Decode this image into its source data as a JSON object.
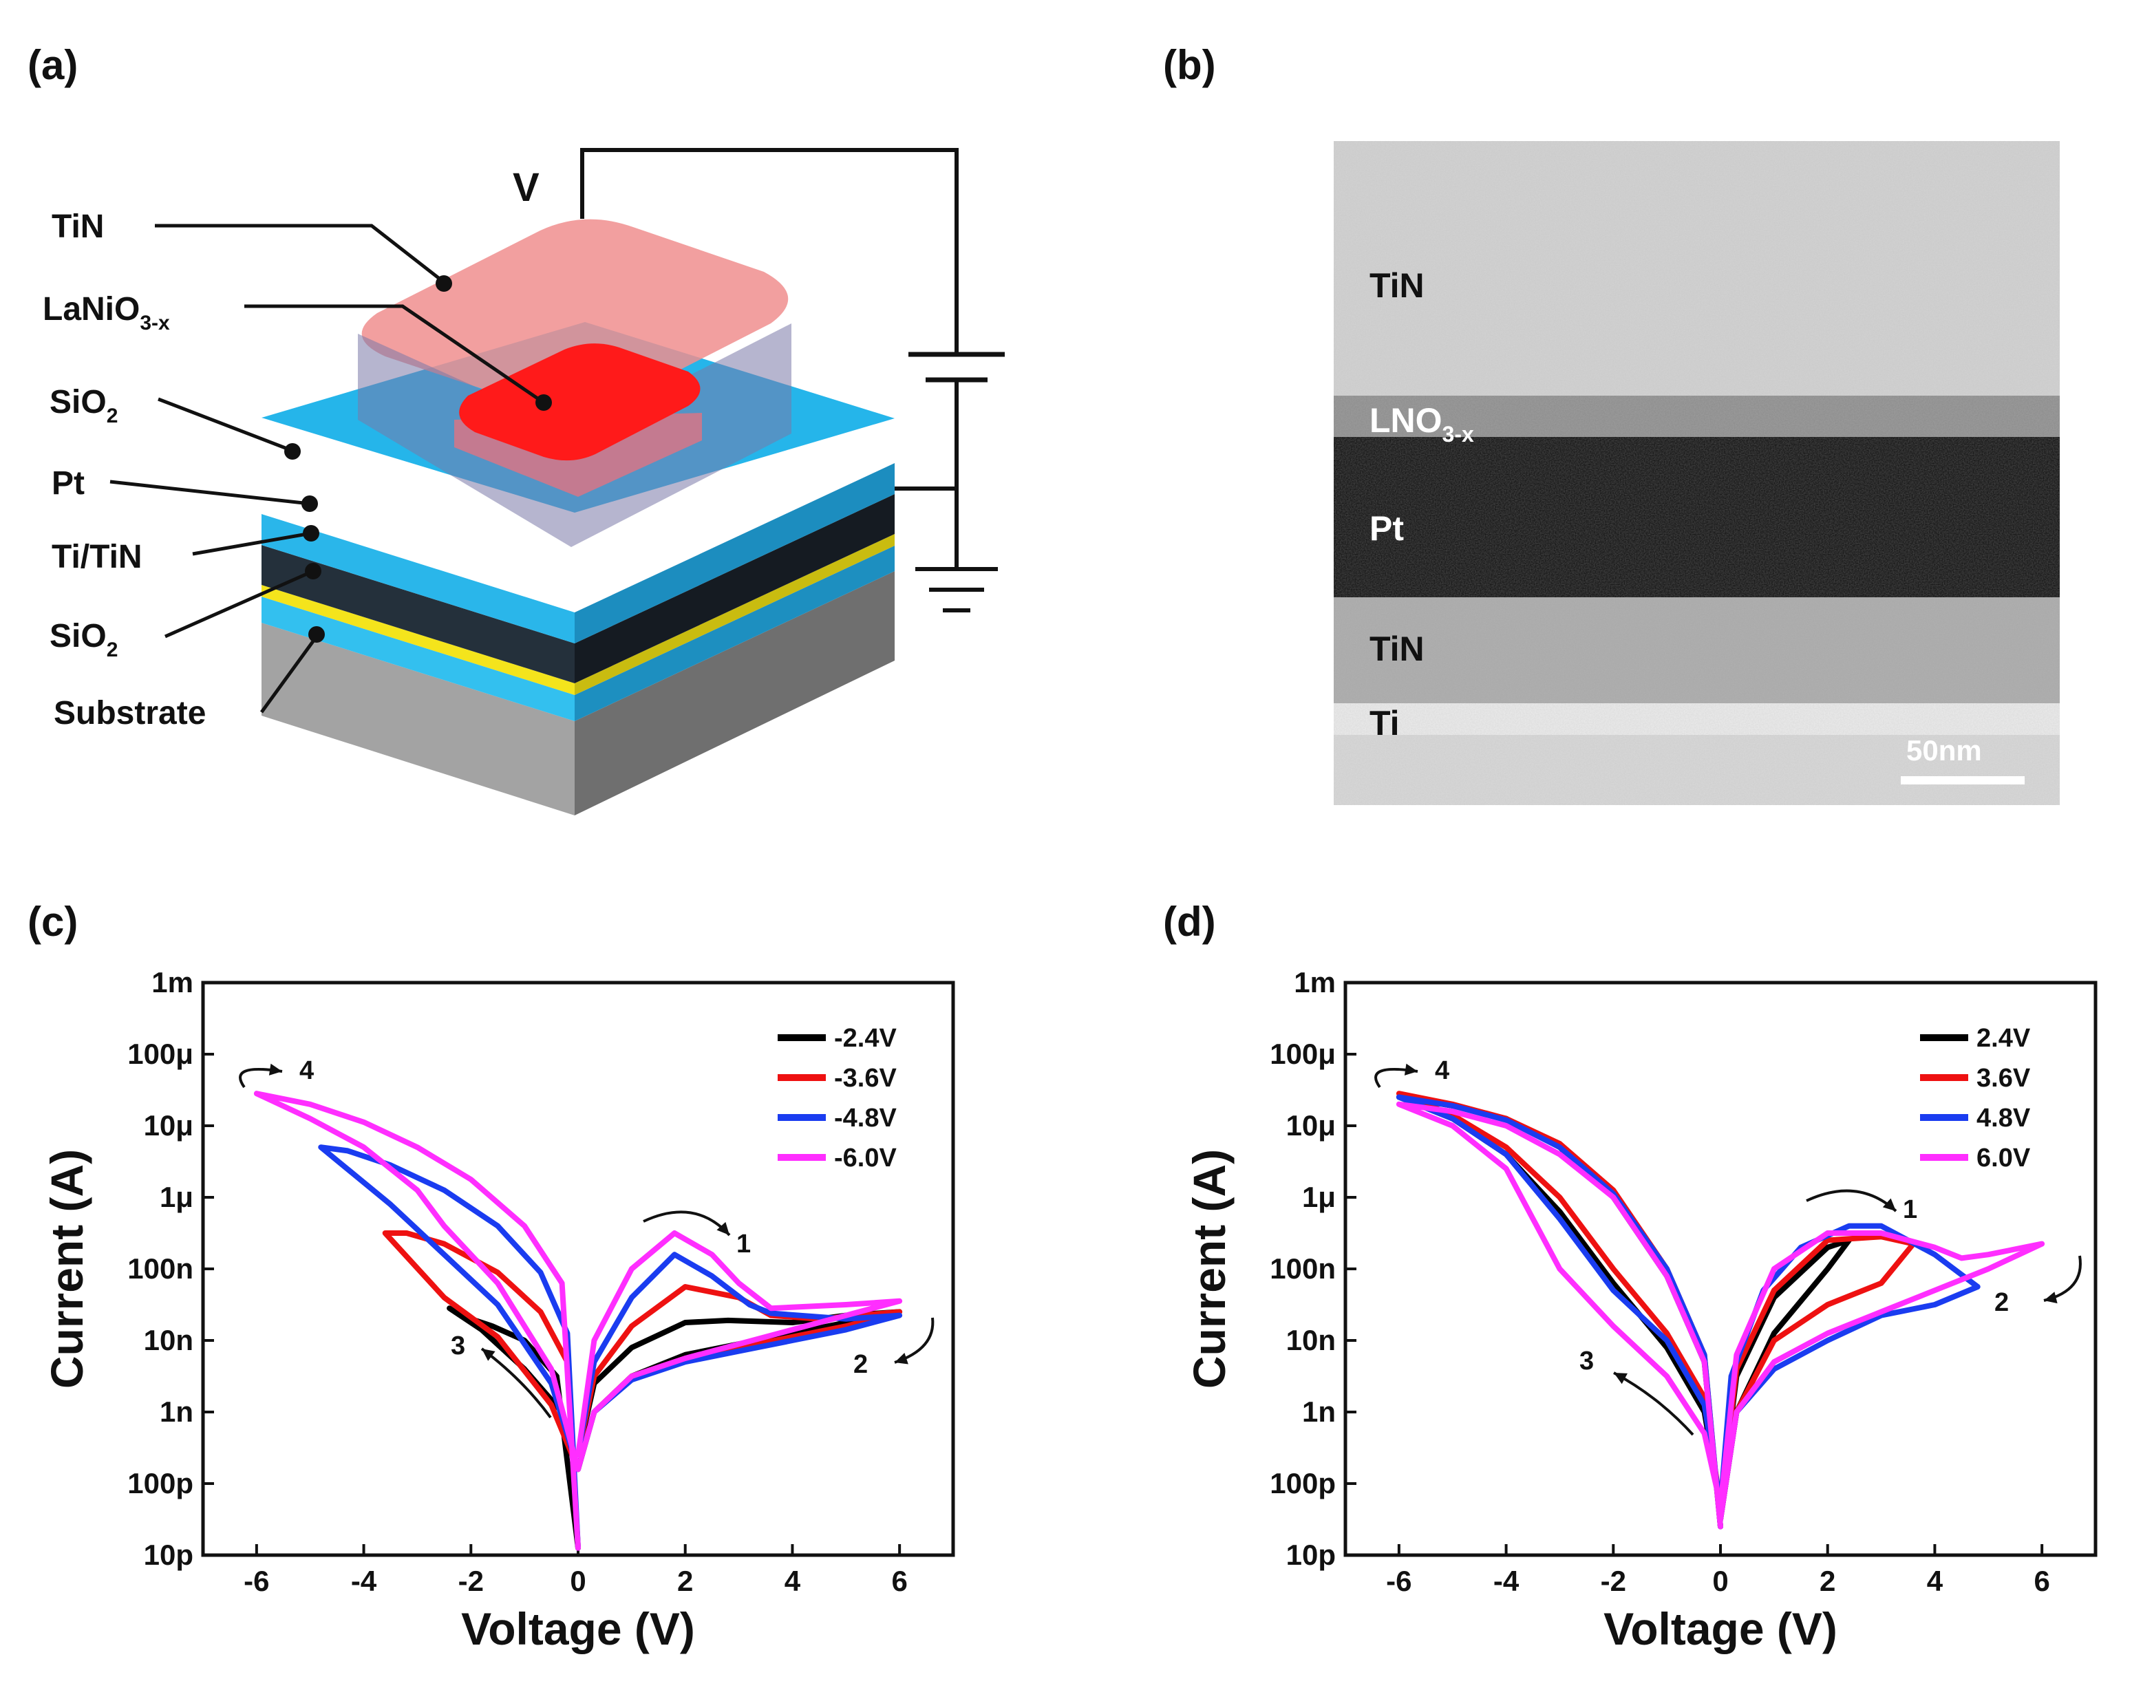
{
  "panels": {
    "a": {
      "label": "(a)",
      "voltage_label": "V",
      "layers": [
        "TiN",
        "LaNiO",
        "SiO",
        "Pt",
        "Ti/TiN",
        "SiO",
        "Substrate"
      ],
      "lanio_sub": "3-x",
      "sio2_sub": "2",
      "colors": {
        "tin_pad": "#f4a6a6",
        "lno_pad": "#ff1a1a",
        "sio2": "#29b6e8",
        "pt": "#1c2530",
        "ti": "#f0e21a",
        "substrate": "#9a9a9a"
      }
    },
    "b": {
      "label": "(b)",
      "layers": [
        "TiN",
        "LNO",
        "Pt",
        "TiN",
        "Ti"
      ],
      "lno_sub": "3-x",
      "scale_bar": "50nm"
    },
    "c": {
      "label": "(c)"
    },
    "d": {
      "label": "(d)"
    }
  },
  "chart_data": [
    {
      "panel": "(c)",
      "type": "line",
      "title": "",
      "xlabel": "Voltage (V)",
      "ylabel": "Current (A)",
      "xlim": [
        -7,
        7
      ],
      "ylim_log10": [
        -11,
        -3
      ],
      "xticks": [
        -6,
        -4,
        -2,
        0,
        2,
        4,
        6
      ],
      "xtick_labels": [
        "-6",
        "-4",
        "-2",
        "0",
        "2",
        "4",
        "6"
      ],
      "yticks_log10": [
        -11,
        -10,
        -9,
        -8,
        -7,
        -6,
        -5,
        -4,
        -3
      ],
      "ytick_labels": [
        "10p",
        "100p",
        "1n",
        "10n",
        "100n",
        "1μ",
        "10μ",
        "100μ",
        "1m"
      ],
      "annotations": [
        "1",
        "2",
        "3",
        "4"
      ],
      "series": [
        {
          "name": "-2.4V",
          "color": "#000000",
          "points": [
            [
              0,
              -9.6
            ],
            [
              0.3,
              -8.6
            ],
            [
              1,
              -8.1
            ],
            [
              2,
              -7.75
            ],
            [
              2.8,
              -7.72
            ],
            [
              4,
              -7.75
            ],
            [
              5,
              -7.65
            ],
            [
              6,
              -7.6
            ],
            [
              5,
              -7.75
            ],
            [
              4,
              -7.9
            ],
            [
              3,
              -8.05
            ],
            [
              2,
              -8.2
            ],
            [
              1,
              -8.5
            ],
            [
              0.3,
              -9.0
            ],
            [
              0,
              -9.8
            ],
            [
              -0.3,
              -9.0
            ],
            [
              -1,
              -8.4
            ],
            [
              -1.8,
              -7.85
            ],
            [
              -2.4,
              -7.55
            ],
            [
              -2.2,
              -7.65
            ],
            [
              -1.6,
              -7.8
            ],
            [
              -1,
              -8.0
            ],
            [
              -0.4,
              -8.5
            ],
            [
              0,
              -10.9
            ]
          ]
        },
        {
          "name": "-3.6V",
          "color": "#ee1111",
          "points": [
            [
              0,
              -9.6
            ],
            [
              0.3,
              -8.5
            ],
            [
              1,
              -7.8
            ],
            [
              2,
              -7.25
            ],
            [
              3,
              -7.4
            ],
            [
              3.6,
              -7.65
            ],
            [
              4.5,
              -7.7
            ],
            [
              6,
              -7.6
            ],
            [
              5,
              -7.8
            ],
            [
              4,
              -7.95
            ],
            [
              3,
              -8.1
            ],
            [
              2,
              -8.25
            ],
            [
              1,
              -8.5
            ],
            [
              0.3,
              -9.0
            ],
            [
              0,
              -9.8
            ],
            [
              -0.5,
              -8.9
            ],
            [
              -1.5,
              -7.95
            ],
            [
              -2.5,
              -7.4
            ],
            [
              -3.6,
              -6.5
            ],
            [
              -3.2,
              -6.5
            ],
            [
              -2.5,
              -6.65
            ],
            [
              -1.5,
              -7.05
            ],
            [
              -0.7,
              -7.6
            ],
            [
              -0.2,
              -8.3
            ],
            [
              0,
              -10.9
            ]
          ]
        },
        {
          "name": "-4.8V",
          "color": "#1a3cf0",
          "points": [
            [
              0,
              -9.6
            ],
            [
              0.3,
              -8.3
            ],
            [
              1,
              -7.4
            ],
            [
              1.8,
              -6.8
            ],
            [
              2.5,
              -7.1
            ],
            [
              3.2,
              -7.5
            ],
            [
              3.6,
              -7.62
            ],
            [
              5,
              -7.7
            ],
            [
              6,
              -7.65
            ],
            [
              5,
              -7.85
            ],
            [
              4,
              -8.0
            ],
            [
              3,
              -8.15
            ],
            [
              2,
              -8.3
            ],
            [
              1,
              -8.55
            ],
            [
              0.3,
              -9.0
            ],
            [
              0,
              -9.8
            ],
            [
              -0.5,
              -8.6
            ],
            [
              -1.5,
              -7.5
            ],
            [
              -2.5,
              -6.8
            ],
            [
              -3.5,
              -6.1
            ],
            [
              -4.8,
              -5.3
            ],
            [
              -4.3,
              -5.35
            ],
            [
              -3.5,
              -5.55
            ],
            [
              -2.5,
              -5.9
            ],
            [
              -1.5,
              -6.4
            ],
            [
              -0.7,
              -7.05
            ],
            [
              -0.2,
              -7.9
            ],
            [
              0,
              -10.9
            ]
          ]
        },
        {
          "name": "-6.0V",
          "color": "#ff2eff",
          "points": [
            [
              0,
              -9.6
            ],
            [
              0.3,
              -8.0
            ],
            [
              1,
              -7.0
            ],
            [
              1.8,
              -6.5
            ],
            [
              2.5,
              -6.8
            ],
            [
              3,
              -7.2
            ],
            [
              3.6,
              -7.55
            ],
            [
              5,
              -7.5
            ],
            [
              6,
              -7.45
            ],
            [
              5,
              -7.65
            ],
            [
              4,
              -7.85
            ],
            [
              3,
              -8.05
            ],
            [
              2,
              -8.25
            ],
            [
              1,
              -8.5
            ],
            [
              0.3,
              -9.0
            ],
            [
              0,
              -9.8
            ],
            [
              -0.5,
              -8.4
            ],
            [
              -1.5,
              -7.2
            ],
            [
              -2.5,
              -6.4
            ],
            [
              -3,
              -5.9
            ],
            [
              -4,
              -5.3
            ],
            [
              -5,
              -4.9
            ],
            [
              -6,
              -4.55
            ],
            [
              -5,
              -4.7
            ],
            [
              -4,
              -4.95
            ],
            [
              -3,
              -5.3
            ],
            [
              -2,
              -5.75
            ],
            [
              -1,
              -6.4
            ],
            [
              -0.3,
              -7.2
            ],
            [
              0,
              -10.9
            ]
          ]
        }
      ]
    },
    {
      "panel": "(d)",
      "type": "line",
      "title": "",
      "xlabel": "Voltage (V)",
      "ylabel": "Current (A)",
      "xlim": [
        -7,
        7
      ],
      "ylim_log10": [
        -11,
        -3
      ],
      "xticks": [
        -6,
        -4,
        -2,
        0,
        2,
        4,
        6
      ],
      "xtick_labels": [
        "-6",
        "-4",
        "-2",
        "0",
        "2",
        "4",
        "6"
      ],
      "yticks_log10": [
        -11,
        -10,
        -9,
        -8,
        -7,
        -6,
        -5,
        -4,
        -3
      ],
      "ytick_labels": [
        "10p",
        "100p",
        "1n",
        "10n",
        "100n",
        "1μ",
        "10μ",
        "100μ",
        "1m"
      ],
      "annotations": [
        "1",
        "2",
        "3",
        "4"
      ],
      "series": [
        {
          "name": "2.4V",
          "color": "#000000",
          "points": [
            [
              0,
              -10.5
            ],
            [
              0.3,
              -9.0
            ],
            [
              1,
              -7.9
            ],
            [
              2,
              -7.0
            ],
            [
              2.4,
              -6.6
            ],
            [
              2,
              -6.7
            ],
            [
              1,
              -7.4
            ],
            [
              0.3,
              -8.5
            ],
            [
              0,
              -10.3
            ],
            [
              -0.3,
              -9.0
            ],
            [
              -1,
              -8.1
            ],
            [
              -2,
              -7.2
            ],
            [
              -3,
              -6.2
            ],
            [
              -4,
              -5.4
            ],
            [
              -5,
              -4.9
            ],
            [
              -6,
              -4.6
            ],
            [
              -5,
              -4.72
            ],
            [
              -4,
              -4.9
            ],
            [
              -3,
              -5.3
            ],
            [
              -2,
              -6.0
            ],
            [
              -1,
              -7.1
            ],
            [
              -0.3,
              -8.3
            ],
            [
              0,
              -10.6
            ]
          ]
        },
        {
          "name": "3.6V",
          "color": "#ee1111",
          "points": [
            [
              0,
              -10.5
            ],
            [
              0.3,
              -9.0
            ],
            [
              1,
              -8.0
            ],
            [
              2,
              -7.5
            ],
            [
              3,
              -7.2
            ],
            [
              3.6,
              -6.65
            ],
            [
              3,
              -6.55
            ],
            [
              2,
              -6.6
            ],
            [
              1,
              -7.3
            ],
            [
              0.3,
              -8.4
            ],
            [
              0,
              -10.3
            ],
            [
              -0.3,
              -8.8
            ],
            [
              -1,
              -7.9
            ],
            [
              -2,
              -7.0
            ],
            [
              -3,
              -6.0
            ],
            [
              -4,
              -5.3
            ],
            [
              -5,
              -4.85
            ],
            [
              -6,
              -4.55
            ],
            [
              -5,
              -4.7
            ],
            [
              -4,
              -4.9
            ],
            [
              -3,
              -5.25
            ],
            [
              -2,
              -5.9
            ],
            [
              -1,
              -7.0
            ],
            [
              -0.3,
              -8.2
            ],
            [
              0,
              -10.6
            ]
          ]
        },
        {
          "name": "4.8V",
          "color": "#1a3cf0",
          "points": [
            [
              0,
              -10.5
            ],
            [
              0.3,
              -9.0
            ],
            [
              1,
              -8.4
            ],
            [
              2,
              -8.0
            ],
            [
              3,
              -7.65
            ],
            [
              4,
              -7.5
            ],
            [
              4.8,
              -7.25
            ],
            [
              4,
              -6.8
            ],
            [
              3,
              -6.4
            ],
            [
              2.4,
              -6.4
            ],
            [
              1.5,
              -6.7
            ],
            [
              0.8,
              -7.3
            ],
            [
              0.2,
              -8.5
            ],
            [
              0,
              -10.3
            ],
            [
              -0.3,
              -8.9
            ],
            [
              -1,
              -8.0
            ],
            [
              -2,
              -7.3
            ],
            [
              -3,
              -6.3
            ],
            [
              -4,
              -5.4
            ],
            [
              -5,
              -4.9
            ],
            [
              -6,
              -4.6
            ],
            [
              -5,
              -4.72
            ],
            [
              -4,
              -4.92
            ],
            [
              -3,
              -5.3
            ],
            [
              -2,
              -5.95
            ],
            [
              -1,
              -7.0
            ],
            [
              -0.3,
              -8.2
            ],
            [
              0,
              -10.6
            ]
          ]
        },
        {
          "name": "6.0V",
          "color": "#ff2eff",
          "points": [
            [
              0,
              -10.5
            ],
            [
              0.3,
              -9.0
            ],
            [
              1,
              -8.3
            ],
            [
              2,
              -7.9
            ],
            [
              3,
              -7.6
            ],
            [
              4,
              -7.3
            ],
            [
              5,
              -7.0
            ],
            [
              6,
              -6.65
            ],
            [
              5,
              -6.8
            ],
            [
              4.5,
              -6.85
            ],
            [
              4,
              -6.7
            ],
            [
              3,
              -6.5
            ],
            [
              2,
              -6.5
            ],
            [
              1,
              -7.0
            ],
            [
              0.3,
              -8.2
            ],
            [
              0,
              -10.3
            ],
            [
              -0.3,
              -9.3
            ],
            [
              -1,
              -8.5
            ],
            [
              -2,
              -7.8
            ],
            [
              -3,
              -7.0
            ],
            [
              -3.5,
              -6.3
            ],
            [
              -4,
              -5.6
            ],
            [
              -5,
              -5.0
            ],
            [
              -6,
              -4.7
            ],
            [
              -5,
              -4.8
            ],
            [
              -4,
              -5.0
            ],
            [
              -3,
              -5.4
            ],
            [
              -2,
              -6.0
            ],
            [
              -1,
              -7.1
            ],
            [
              -0.3,
              -8.3
            ],
            [
              0,
              -10.6
            ]
          ]
        }
      ]
    }
  ]
}
